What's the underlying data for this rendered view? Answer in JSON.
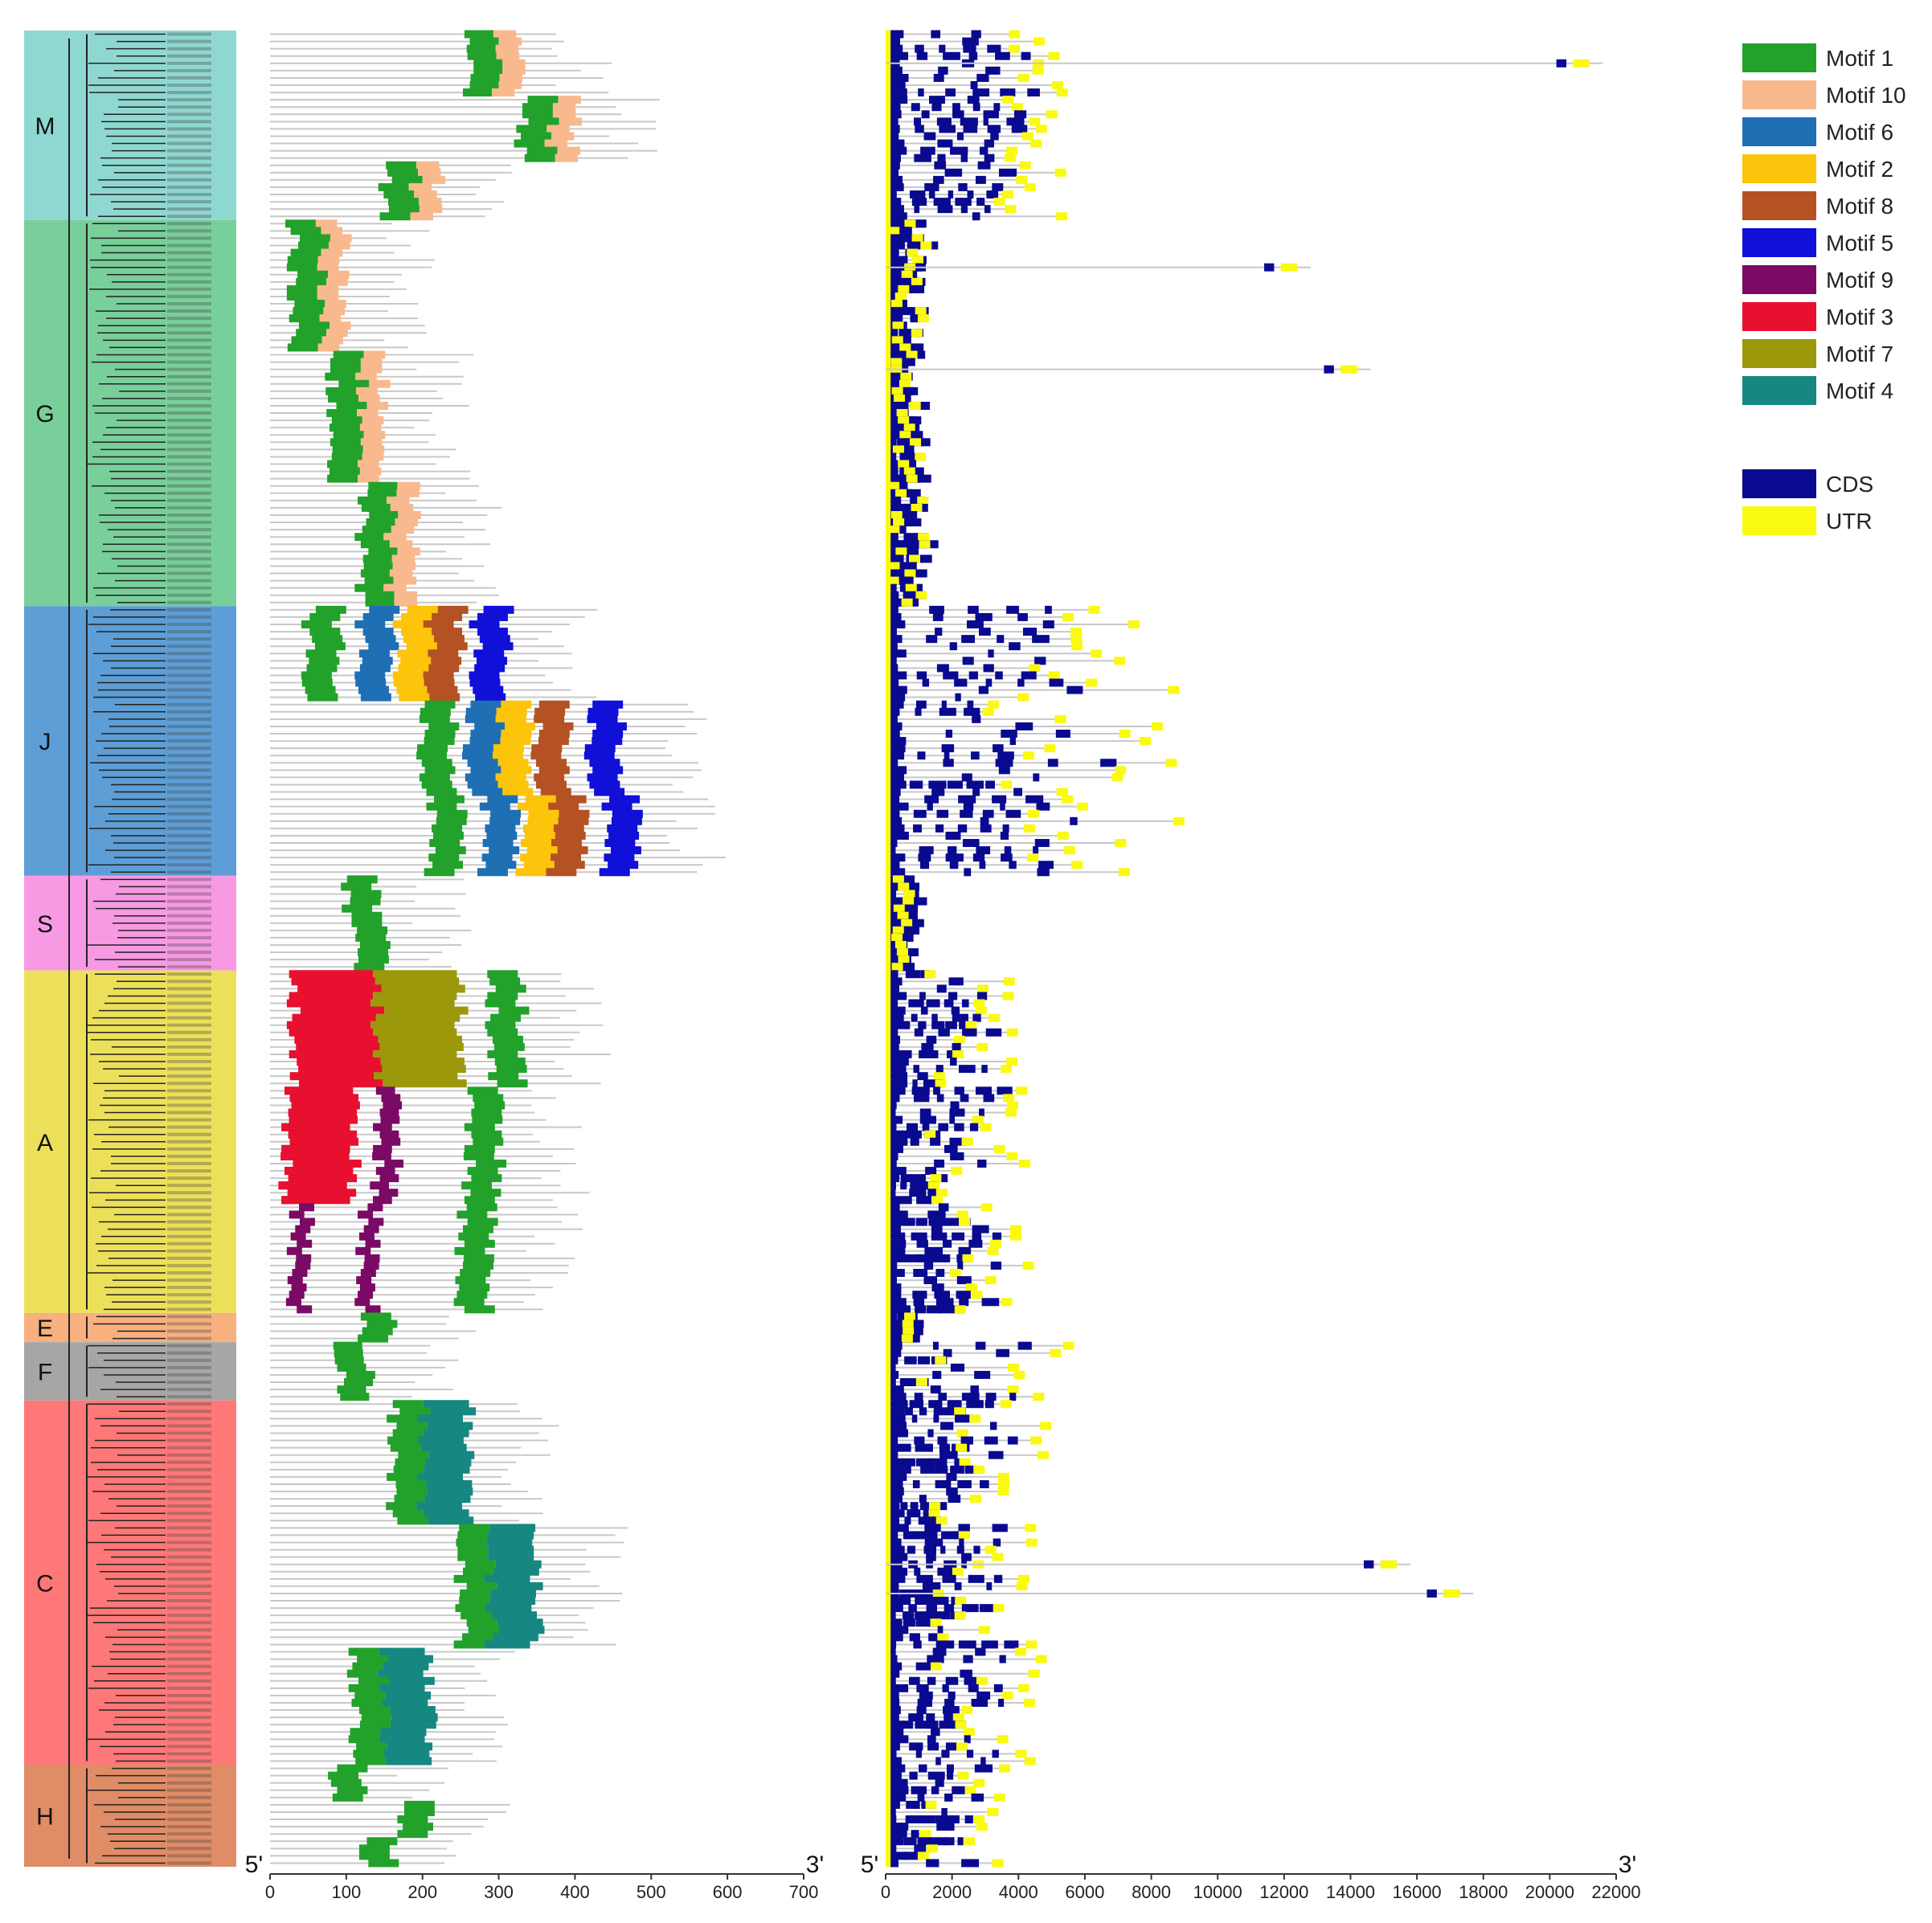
{
  "groups": [
    {
      "name": "M",
      "color": "#8fd8d2",
      "members": 26
    },
    {
      "name": "G",
      "color": "#79cf9a",
      "members": 53
    },
    {
      "name": "J",
      "color": "#5d9ed6",
      "members": 37
    },
    {
      "name": "S",
      "color": "#f79ae3",
      "members": 13
    },
    {
      "name": "A",
      "color": "#ece05a",
      "members": 47
    },
    {
      "name": "E",
      "color": "#f8b07e",
      "members": 4
    },
    {
      "name": "F",
      "color": "#a6a6a6",
      "members": 8
    },
    {
      "name": "C",
      "color": "#ff7878",
      "members": 50
    },
    {
      "name": "H",
      "color": "#e08c66",
      "members": 14
    }
  ],
  "motif_axis": {
    "ticks": [
      "0",
      "100",
      "200",
      "300",
      "400",
      "500",
      "600",
      "700"
    ],
    "max": 700,
    "five_prime": "5'",
    "three_prime": "3'"
  },
  "gene_axis": {
    "ticks": [
      "0",
      "2000",
      "4000",
      "6000",
      "8000",
      "10000",
      "12000",
      "14000",
      "16000",
      "18000",
      "20000",
      "22000"
    ],
    "max": 22000,
    "five_prime": "5'",
    "three_prime": "3'"
  },
  "legend": {
    "motifs": [
      {
        "label": "Motif 1",
        "color": "#22a22a"
      },
      {
        "label": "Motif 10",
        "color": "#f9b98e"
      },
      {
        "label": "Motif 6",
        "color": "#1f6fb5"
      },
      {
        "label": "Motif 2",
        "color": "#fcc40b"
      },
      {
        "label": "Motif 8",
        "color": "#b55223"
      },
      {
        "label": "Motif 5",
        "color": "#1010d8"
      },
      {
        "label": "Motif 9",
        "color": "#7b0a66"
      },
      {
        "label": "Motif 3",
        "color": "#e8102f"
      },
      {
        "label": "Motif 7",
        "color": "#9c980b"
      },
      {
        "label": "Motif 4",
        "color": "#168781"
      }
    ],
    "structure": [
      {
        "label": "CDS",
        "color": "#0a0a90"
      },
      {
        "label": "UTR",
        "color": "#fafa10"
      }
    ]
  },
  "colors": {
    "line": "#c8c8c8",
    "tree": "#222222"
  }
}
